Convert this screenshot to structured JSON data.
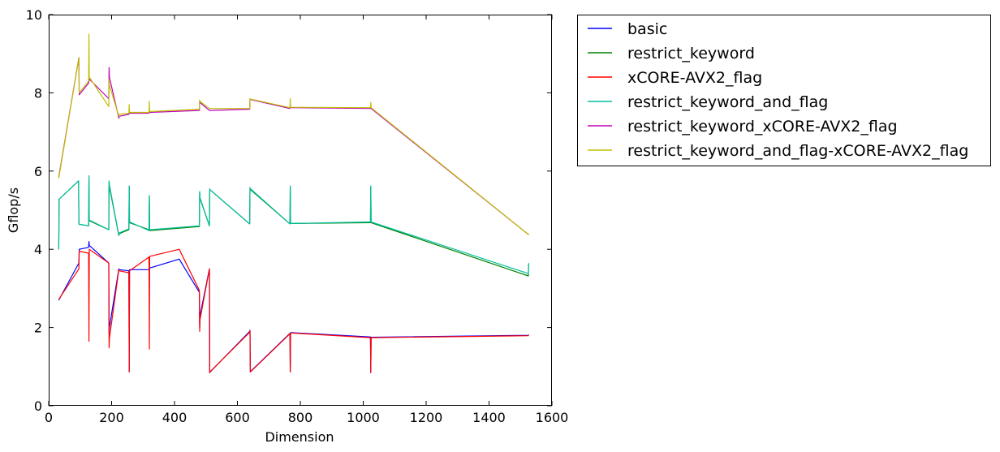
{
  "chart_data": {
    "type": "line",
    "title": "",
    "xlabel": "Dimension",
    "ylabel": "Gflop/s",
    "xlim": [
      0,
      1600
    ],
    "ylim": [
      0,
      10
    ],
    "xticks": [
      "0",
      "200",
      "400",
      "600",
      "800",
      "1000",
      "1200",
      "1400",
      "1600"
    ],
    "yticks": [
      "0",
      "2",
      "4",
      "6",
      "8",
      "10"
    ],
    "grid": false,
    "legend_position": "outside-right-top",
    "series": [
      {
        "name": "basic",
        "color": "#0000ff",
        "x": [
          32,
          96,
          97,
          127,
          128,
          129,
          191,
          192,
          193,
          223,
          224,
          255,
          256,
          257,
          319,
          320,
          321,
          415,
          479,
          480,
          481,
          511,
          512,
          513,
          639,
          640,
          641,
          767,
          768,
          769,
          1023,
          1024,
          1025,
          1525,
          1526
        ],
        "y": [
          2.7,
          3.65,
          4.0,
          4.05,
          4.2,
          4.1,
          3.65,
          1.85,
          2.0,
          3.5,
          3.48,
          3.45,
          0.88,
          3.48,
          3.48,
          3.5,
          3.52,
          3.75,
          2.9,
          2.0,
          2.3,
          3.5,
          0.85,
          0.86,
          1.9,
          1.93,
          0.87,
          1.85,
          0.88,
          1.87,
          1.76,
          0.87,
          1.75,
          1.8,
          1.82
        ]
      },
      {
        "name": "restrict_keyword",
        "color": "#008000",
        "x": [
          32,
          33,
          95,
          96,
          97,
          127,
          128,
          129,
          191,
          192,
          193,
          223,
          224,
          255,
          256,
          257,
          319,
          320,
          321,
          479,
          480,
          481,
          511,
          512,
          513,
          639,
          640,
          641,
          767,
          768,
          769,
          1023,
          1024,
          1025,
          1525,
          1526
        ],
        "y": [
          4.0,
          5.28,
          5.75,
          4.65,
          4.64,
          4.6,
          5.8,
          4.73,
          4.5,
          5.72,
          5.6,
          4.35,
          4.4,
          4.5,
          5.6,
          4.68,
          4.5,
          5.35,
          4.48,
          4.58,
          5.45,
          5.3,
          4.6,
          5.5,
          5.52,
          4.65,
          5.55,
          5.53,
          4.65,
          5.6,
          4.66,
          4.68,
          5.6,
          4.68,
          3.32,
          3.62
        ]
      },
      {
        "name": "xCORE-AVX2_flag",
        "color": "#ff0000",
        "x": [
          32,
          96,
          97,
          127,
          128,
          129,
          191,
          192,
          193,
          223,
          224,
          255,
          256,
          257,
          319,
          320,
          321,
          415,
          479,
          480,
          481,
          511,
          512,
          513,
          639,
          640,
          641,
          767,
          768,
          769,
          1023,
          1024,
          1025,
          1525,
          1526
        ],
        "y": [
          2.72,
          3.5,
          3.95,
          3.9,
          1.65,
          4.0,
          3.65,
          1.48,
          1.72,
          3.48,
          3.45,
          3.4,
          0.86,
          3.45,
          3.8,
          1.45,
          3.82,
          4.0,
          2.95,
          1.9,
          2.2,
          3.5,
          0.84,
          0.87,
          1.88,
          1.92,
          0.86,
          1.84,
          0.86,
          1.86,
          1.74,
          0.84,
          1.74,
          1.79,
          1.82
        ]
      },
      {
        "name": "restrict_keyword_and_flag",
        "color": "#00bfa0",
        "x": [
          32,
          33,
          95,
          96,
          97,
          127,
          128,
          129,
          191,
          192,
          193,
          223,
          224,
          255,
          256,
          257,
          319,
          320,
          321,
          479,
          480,
          481,
          511,
          512,
          513,
          639,
          640,
          641,
          767,
          768,
          769,
          1023,
          1024,
          1025,
          1525,
          1526
        ],
        "y": [
          4.0,
          5.28,
          5.75,
          4.65,
          4.64,
          4.6,
          5.88,
          4.75,
          4.5,
          5.75,
          5.65,
          4.35,
          4.42,
          4.52,
          5.62,
          4.7,
          4.48,
          5.38,
          4.5,
          4.6,
          5.48,
          5.32,
          4.6,
          5.55,
          5.52,
          4.65,
          5.58,
          5.55,
          4.65,
          5.62,
          4.66,
          4.7,
          5.62,
          4.7,
          3.38,
          3.65
        ]
      },
      {
        "name": "restrict_keyword_xCORE-AVX2_flag",
        "color": "#bf00bf",
        "x": [
          32,
          95,
          96,
          97,
          127,
          128,
          129,
          191,
          192,
          193,
          223,
          224,
          255,
          256,
          257,
          319,
          320,
          321,
          479,
          480,
          481,
          511,
          512,
          639,
          640,
          641,
          767,
          768,
          769,
          1023,
          1024,
          1025,
          1525,
          1526
        ],
        "y": [
          5.85,
          8.85,
          8.9,
          7.95,
          8.25,
          8.3,
          8.35,
          7.85,
          8.65,
          8.4,
          7.35,
          7.4,
          7.45,
          7.5,
          7.48,
          7.48,
          7.52,
          7.5,
          7.55,
          7.8,
          7.75,
          7.55,
          7.55,
          7.58,
          7.85,
          7.83,
          7.6,
          7.65,
          7.62,
          7.6,
          7.72,
          7.6,
          4.38,
          4.4
        ]
      },
      {
        "name": "restrict_keyword_and_flag-xCORE-AVX2_flag",
        "color": "#bfbf00",
        "x": [
          32,
          95,
          96,
          97,
          127,
          128,
          129,
          191,
          192,
          193,
          223,
          224,
          255,
          256,
          257,
          319,
          320,
          321,
          479,
          480,
          481,
          511,
          512,
          639,
          640,
          641,
          767,
          768,
          769,
          1023,
          1024,
          1025,
          1525,
          1526
        ],
        "y": [
          5.82,
          8.85,
          8.9,
          8.0,
          8.3,
          9.5,
          8.4,
          7.65,
          8.35,
          8.2,
          7.4,
          7.45,
          7.48,
          7.7,
          7.5,
          7.5,
          7.78,
          7.52,
          7.58,
          7.82,
          7.78,
          7.6,
          7.6,
          7.6,
          7.85,
          7.84,
          7.62,
          7.85,
          7.63,
          7.62,
          7.75,
          7.62,
          4.38,
          4.4
        ]
      }
    ]
  }
}
